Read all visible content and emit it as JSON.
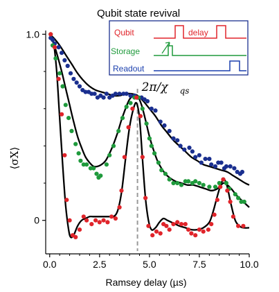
{
  "chart_data": {
    "type": "scatter",
    "title": "Qubit state revival",
    "xlabel": "Ramsey delay (µs)",
    "ylabel": "⟨σX⟩",
    "xlim": [
      -0.2,
      10.0
    ],
    "ylim": [
      -0.18,
      1.02
    ],
    "xticks": [
      0.0,
      2.5,
      5.0,
      7.5,
      10.0
    ],
    "xtick_labels": [
      "0.0",
      "2.5",
      "5.0",
      "7.5",
      "10.0"
    ],
    "yticks": [
      0,
      1
    ],
    "ytick_labels": [
      "0",
      "1.0"
    ],
    "annotation": {
      "text": "2π/χ",
      "subscript": "qs",
      "x": 4.4
    },
    "colors": {
      "blue": "#1a2f8f",
      "green": "#1f9a3c",
      "red": "#e0242a",
      "fit": "#000000",
      "dash": "#999999"
    },
    "series": [
      {
        "color": "blue",
        "points": [
          [
            0.05,
            0.98
          ],
          [
            0.15,
            0.97
          ],
          [
            0.25,
            0.95
          ],
          [
            0.45,
            0.93
          ],
          [
            0.6,
            0.9
          ],
          [
            0.75,
            0.86
          ],
          [
            0.9,
            0.83
          ],
          [
            1.05,
            0.79
          ],
          [
            1.2,
            0.76
          ],
          [
            1.35,
            0.74
          ],
          [
            1.5,
            0.72
          ],
          [
            1.65,
            0.7
          ],
          [
            1.8,
            0.69
          ],
          [
            1.95,
            0.69
          ],
          [
            2.1,
            0.68
          ],
          [
            2.25,
            0.68
          ],
          [
            2.4,
            0.66
          ],
          [
            2.55,
            0.67
          ],
          [
            2.7,
            0.66
          ],
          [
            2.85,
            0.68
          ],
          [
            3.0,
            0.66
          ],
          [
            3.15,
            0.67
          ],
          [
            3.3,
            0.68
          ],
          [
            3.5,
            0.68
          ],
          [
            3.7,
            0.68
          ],
          [
            3.85,
            0.68
          ],
          [
            4.05,
            0.67
          ],
          [
            4.25,
            0.67
          ],
          [
            4.45,
            0.66
          ],
          [
            4.6,
            0.66
          ],
          [
            4.75,
            0.65
          ],
          [
            4.9,
            0.64
          ],
          [
            5.1,
            0.6
          ],
          [
            5.3,
            0.59
          ],
          [
            5.55,
            0.53
          ],
          [
            5.75,
            0.51
          ],
          [
            6.0,
            0.48
          ],
          [
            6.2,
            0.44
          ],
          [
            6.4,
            0.43
          ],
          [
            6.55,
            0.4
          ],
          [
            6.75,
            0.38
          ],
          [
            7.0,
            0.39
          ],
          [
            7.15,
            0.37
          ],
          [
            7.3,
            0.34
          ],
          [
            7.5,
            0.35
          ],
          [
            7.6,
            0.31
          ],
          [
            7.8,
            0.33
          ],
          [
            8.0,
            0.33
          ],
          [
            8.1,
            0.3
          ],
          [
            8.3,
            0.29
          ],
          [
            8.45,
            0.31
          ],
          [
            8.6,
            0.31
          ],
          [
            8.75,
            0.28
          ],
          [
            8.85,
            0.29
          ],
          [
            9.05,
            0.29
          ],
          [
            9.25,
            0.28
          ],
          [
            9.4,
            0.26
          ],
          [
            9.55,
            0.25
          ],
          [
            9.65,
            0.26
          ]
        ]
      },
      {
        "color": "green",
        "points": [
          [
            0.05,
            1.0
          ],
          [
            0.15,
            0.94
          ],
          [
            0.3,
            0.87
          ],
          [
            0.5,
            0.79
          ],
          [
            0.65,
            0.72
          ],
          [
            0.8,
            0.62
          ],
          [
            0.95,
            0.55
          ],
          [
            1.1,
            0.48
          ],
          [
            1.3,
            0.41
          ],
          [
            1.45,
            0.36
          ],
          [
            1.55,
            0.32
          ],
          [
            1.7,
            0.3
          ],
          [
            1.85,
            0.3
          ],
          [
            2.05,
            0.28
          ],
          [
            2.2,
            0.28
          ],
          [
            2.35,
            0.25
          ],
          [
            2.45,
            0.23
          ],
          [
            2.55,
            0.24
          ],
          [
            2.85,
            0.3
          ],
          [
            3.0,
            0.35
          ],
          [
            3.2,
            0.4
          ],
          [
            3.45,
            0.48
          ],
          [
            3.65,
            0.55
          ],
          [
            3.85,
            0.61
          ],
          [
            4.05,
            0.63
          ],
          [
            4.25,
            0.66
          ],
          [
            4.45,
            0.66
          ],
          [
            4.65,
            0.6
          ],
          [
            4.85,
            0.52
          ],
          [
            5.0,
            0.44
          ],
          [
            5.1,
            0.4
          ],
          [
            5.25,
            0.36
          ],
          [
            5.45,
            0.31
          ],
          [
            5.6,
            0.27
          ],
          [
            5.8,
            0.25
          ],
          [
            6.0,
            0.22
          ],
          [
            6.2,
            0.2
          ],
          [
            6.4,
            0.2
          ],
          [
            6.6,
            0.19
          ],
          [
            6.8,
            0.21
          ],
          [
            6.95,
            0.21
          ],
          [
            7.15,
            0.2
          ],
          [
            7.3,
            0.21
          ],
          [
            7.5,
            0.2
          ],
          [
            7.7,
            0.19
          ],
          [
            8.0,
            0.18
          ],
          [
            8.3,
            0.18
          ],
          [
            8.5,
            0.2
          ],
          [
            8.7,
            0.22
          ],
          [
            8.85,
            0.2
          ],
          [
            9.0,
            0.17
          ],
          [
            9.3,
            0.14
          ],
          [
            9.45,
            0.12
          ],
          [
            9.6,
            0.1
          ],
          [
            9.75,
            0.1
          ]
        ]
      },
      {
        "color": "red",
        "points": [
          [
            0.05,
            1.0
          ],
          [
            0.25,
            0.93
          ],
          [
            0.45,
            0.76
          ],
          [
            0.6,
            0.57
          ],
          [
            0.75,
            0.35
          ],
          [
            0.85,
            0.11
          ],
          [
            1.0,
            0.0
          ],
          [
            1.15,
            -0.08
          ],
          [
            1.3,
            -0.09
          ],
          [
            1.5,
            -0.05
          ],
          [
            1.7,
            0.02
          ],
          [
            1.85,
            0.0
          ],
          [
            2.1,
            -0.02
          ],
          [
            2.3,
            0.0
          ],
          [
            2.5,
            -0.01
          ],
          [
            2.7,
            0.0
          ],
          [
            2.9,
            -0.01
          ],
          [
            3.1,
            0.02
          ],
          [
            3.3,
            0.01
          ],
          [
            3.5,
            0.07
          ],
          [
            3.6,
            0.16
          ],
          [
            3.75,
            0.34
          ],
          [
            3.95,
            0.5
          ],
          [
            4.15,
            0.6
          ],
          [
            4.35,
            0.66
          ],
          [
            4.55,
            0.56
          ],
          [
            4.65,
            0.34
          ],
          [
            4.8,
            0.12
          ],
          [
            4.95,
            -0.03
          ],
          [
            5.15,
            -0.08
          ],
          [
            5.35,
            -0.06
          ],
          [
            5.55,
            -0.07
          ],
          [
            5.7,
            -0.02
          ],
          [
            5.85,
            -0.03
          ],
          [
            6.0,
            -0.05
          ],
          [
            6.2,
            -0.02
          ],
          [
            6.4,
            -0.01
          ],
          [
            6.6,
            -0.02
          ],
          [
            6.8,
            -0.02
          ],
          [
            6.95,
            -0.05
          ],
          [
            7.1,
            -0.07
          ],
          [
            7.3,
            -0.08
          ],
          [
            7.5,
            -0.05
          ],
          [
            7.7,
            -0.06
          ],
          [
            7.95,
            -0.05
          ],
          [
            8.1,
            -0.02
          ],
          [
            8.25,
            0.03
          ],
          [
            8.4,
            0.11
          ],
          [
            8.55,
            0.18
          ],
          [
            8.7,
            0.22
          ],
          [
            8.9,
            0.16
          ],
          [
            9.05,
            0.1
          ],
          [
            9.2,
            0.02
          ],
          [
            9.45,
            -0.03
          ],
          [
            9.7,
            -0.03
          ]
        ]
      }
    ],
    "fits": [
      {
        "color": "fit",
        "points": [
          [
            0.0,
            1.0
          ],
          [
            0.2,
            0.98
          ],
          [
            0.5,
            0.94
          ],
          [
            0.8,
            0.89
          ],
          [
            1.1,
            0.84
          ],
          [
            1.4,
            0.79
          ],
          [
            1.7,
            0.75
          ],
          [
            2.0,
            0.72
          ],
          [
            2.3,
            0.7
          ],
          [
            2.6,
            0.69
          ],
          [
            2.9,
            0.68
          ],
          [
            3.2,
            0.67
          ],
          [
            3.5,
            0.67
          ],
          [
            3.8,
            0.68
          ],
          [
            4.1,
            0.68
          ],
          [
            4.4,
            0.67
          ],
          [
            4.7,
            0.64
          ],
          [
            5.0,
            0.6
          ],
          [
            5.3,
            0.56
          ],
          [
            5.6,
            0.51
          ],
          [
            5.9,
            0.47
          ],
          [
            6.2,
            0.43
          ],
          [
            6.5,
            0.4
          ],
          [
            6.8,
            0.37
          ],
          [
            7.1,
            0.34
          ],
          [
            7.4,
            0.32
          ],
          [
            7.7,
            0.3
          ],
          [
            8.0,
            0.29
          ],
          [
            8.3,
            0.28
          ],
          [
            8.6,
            0.27
          ],
          [
            8.9,
            0.26
          ],
          [
            9.2,
            0.24
          ],
          [
            9.5,
            0.22
          ],
          [
            9.8,
            0.2
          ],
          [
            10.0,
            0.19
          ]
        ]
      },
      {
        "color": "fit",
        "points": [
          [
            0.0,
            1.0
          ],
          [
            0.2,
            0.95
          ],
          [
            0.4,
            0.88
          ],
          [
            0.6,
            0.8
          ],
          [
            0.8,
            0.71
          ],
          [
            1.0,
            0.62
          ],
          [
            1.2,
            0.53
          ],
          [
            1.4,
            0.45
          ],
          [
            1.6,
            0.39
          ],
          [
            1.8,
            0.34
          ],
          [
            2.0,
            0.31
          ],
          [
            2.2,
            0.29
          ],
          [
            2.4,
            0.29
          ],
          [
            2.6,
            0.3
          ],
          [
            2.8,
            0.32
          ],
          [
            3.0,
            0.36
          ],
          [
            3.2,
            0.41
          ],
          [
            3.4,
            0.47
          ],
          [
            3.6,
            0.54
          ],
          [
            3.8,
            0.6
          ],
          [
            4.0,
            0.65
          ],
          [
            4.2,
            0.67
          ],
          [
            4.4,
            0.67
          ],
          [
            4.6,
            0.62
          ],
          [
            4.8,
            0.54
          ],
          [
            5.0,
            0.45
          ],
          [
            5.2,
            0.38
          ],
          [
            5.4,
            0.32
          ],
          [
            5.6,
            0.28
          ],
          [
            5.8,
            0.25
          ],
          [
            6.0,
            0.23
          ],
          [
            6.3,
            0.21
          ],
          [
            6.6,
            0.2
          ],
          [
            6.9,
            0.19
          ],
          [
            7.2,
            0.19
          ],
          [
            7.5,
            0.18
          ],
          [
            7.8,
            0.17
          ],
          [
            8.1,
            0.16
          ],
          [
            8.4,
            0.17
          ],
          [
            8.7,
            0.2
          ],
          [
            8.9,
            0.19
          ],
          [
            9.1,
            0.17
          ],
          [
            9.4,
            0.13
          ],
          [
            9.7,
            0.1
          ],
          [
            10.0,
            0.07
          ]
        ]
      },
      {
        "color": "fit",
        "points": [
          [
            0.0,
            1.0
          ],
          [
            0.2,
            0.95
          ],
          [
            0.35,
            0.8
          ],
          [
            0.5,
            0.55
          ],
          [
            0.65,
            0.3
          ],
          [
            0.8,
            0.08
          ],
          [
            0.95,
            -0.05
          ],
          [
            1.05,
            -0.09
          ],
          [
            1.2,
            -0.08
          ],
          [
            1.4,
            -0.03
          ],
          [
            1.6,
            0.0
          ],
          [
            1.8,
            0.01
          ],
          [
            2.0,
            0.02
          ],
          [
            2.2,
            0.02
          ],
          [
            2.4,
            0.02
          ],
          [
            2.6,
            0.02
          ],
          [
            2.8,
            0.02
          ],
          [
            3.0,
            0.02
          ],
          [
            3.2,
            0.02
          ],
          [
            3.4,
            0.05
          ],
          [
            3.6,
            0.15
          ],
          [
            3.8,
            0.33
          ],
          [
            4.0,
            0.5
          ],
          [
            4.2,
            0.6
          ],
          [
            4.35,
            0.63
          ],
          [
            4.5,
            0.55
          ],
          [
            4.65,
            0.33
          ],
          [
            4.8,
            0.12
          ],
          [
            4.95,
            0.0
          ],
          [
            5.1,
            -0.05
          ],
          [
            5.3,
            -0.04
          ],
          [
            5.5,
            -0.01
          ],
          [
            5.7,
            0.01
          ],
          [
            5.9,
            0.0
          ],
          [
            6.1,
            -0.01
          ],
          [
            6.3,
            -0.02
          ],
          [
            6.5,
            -0.03
          ],
          [
            6.8,
            -0.04
          ],
          [
            7.1,
            -0.05
          ],
          [
            7.4,
            -0.05
          ],
          [
            7.7,
            -0.04
          ],
          [
            8.0,
            -0.01
          ],
          [
            8.2,
            0.05
          ],
          [
            8.4,
            0.13
          ],
          [
            8.6,
            0.2
          ],
          [
            8.75,
            0.22
          ],
          [
            8.9,
            0.18
          ],
          [
            9.1,
            0.08
          ],
          [
            9.3,
            0.0
          ],
          [
            9.5,
            -0.03
          ],
          [
            9.7,
            -0.04
          ],
          [
            10.0,
            -0.04
          ]
        ]
      }
    ]
  },
  "inset": {
    "labels": {
      "qubit": "Qubit",
      "storage": "Storage",
      "readout": "Readout",
      "delay": "delay"
    },
    "colors": {
      "qubit": "#e0242a",
      "storage": "#1f9a3c",
      "readout": "#1a3fae"
    }
  }
}
